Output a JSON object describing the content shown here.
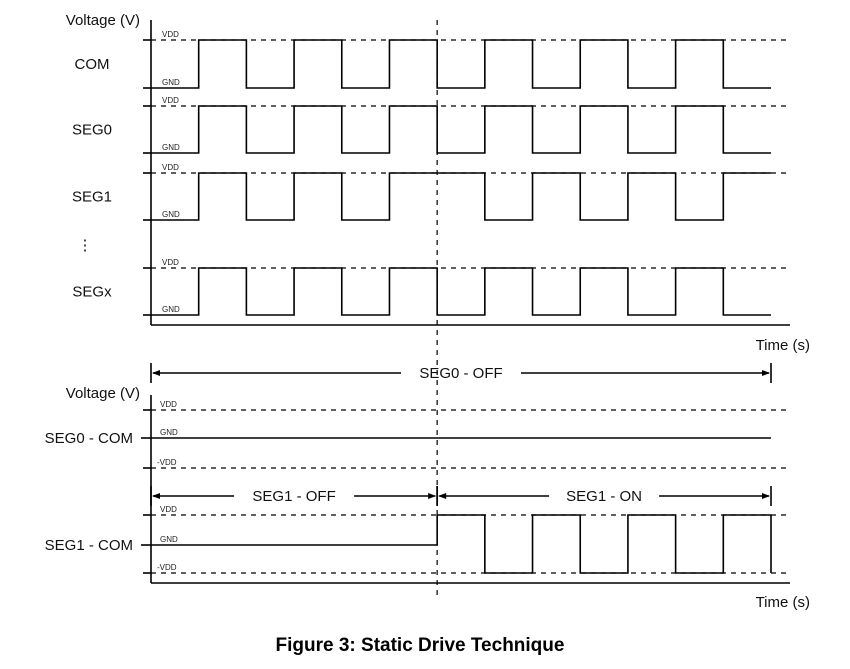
{
  "diagram": {
    "title": "Figure 3: Static Drive Technique",
    "top_panel": {
      "y_axis_label": "Voltage (V)",
      "x_axis_label": "Time (s)",
      "ellipsis": "⋮",
      "level_labels": {
        "high": "VDD",
        "low": "GND"
      },
      "signals": [
        {
          "name": "COM",
          "levels": [
            0,
            1,
            0,
            1,
            0,
            1,
            0,
            1,
            0,
            1,
            0,
            1,
            0
          ]
        },
        {
          "name": "SEG0",
          "levels": [
            0,
            1,
            0,
            1,
            0,
            1,
            0,
            1,
            0,
            1,
            0,
            1,
            0
          ]
        },
        {
          "name": "SEG1",
          "levels": [
            0,
            1,
            0,
            1,
            0,
            1,
            1,
            0,
            1,
            0,
            1,
            0,
            1
          ]
        },
        {
          "name": "SEGx",
          "levels": [
            0,
            1,
            0,
            1,
            0,
            1,
            0,
            1,
            0,
            1,
            0,
            1,
            0
          ]
        }
      ]
    },
    "bottom_panel": {
      "y_axis_label": "Voltage (V)",
      "x_axis_label": "Time (s)",
      "level_labels": {
        "high": "VDD",
        "mid": "GND",
        "low": "-VDD"
      },
      "intervals": [
        {
          "label": "SEG0 - OFF",
          "from": 0,
          "to": 13
        },
        {
          "label": "SEG1 - OFF",
          "from": 0,
          "to": 6
        },
        {
          "label": "SEG1 - ON",
          "from": 6,
          "to": 13
        }
      ],
      "signals": [
        {
          "name": "SEG0 - COM",
          "levels": [
            0,
            0,
            0,
            0,
            0,
            0,
            0,
            0,
            0,
            0,
            0,
            0,
            0
          ],
          "end_level": 0
        },
        {
          "name": "SEG1 - COM",
          "levels": [
            0,
            0,
            0,
            0,
            0,
            0,
            1,
            -1,
            1,
            -1,
            1,
            -1,
            1
          ],
          "end_level": -1
        }
      ]
    }
  }
}
